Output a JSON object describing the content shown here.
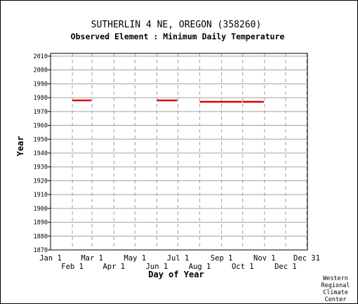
{
  "chart_data": {
    "type": "line",
    "title": "SUTHERLIN 4 NE, OREGON   (358260)",
    "subtitle": "Observed Element : Minimum Daily Temperature",
    "xlabel": "Day of Year",
    "ylabel": "Year",
    "xlim": [
      1,
      366
    ],
    "ylim": [
      1870,
      2012
    ],
    "grid": true,
    "x_ticks_top": [
      {
        "label": "Jan 1",
        "day": 1
      },
      {
        "label": "Mar 1",
        "day": 60
      },
      {
        "label": "May 1",
        "day": 121
      },
      {
        "label": "Jul 1",
        "day": 182
      },
      {
        "label": "Sep 1",
        "day": 244
      },
      {
        "label": "Nov 1",
        "day": 305
      },
      {
        "label": "Dec 31",
        "day": 365
      }
    ],
    "x_ticks_bottom": [
      {
        "label": "Feb 1",
        "day": 32
      },
      {
        "label": "Apr 1",
        "day": 91
      },
      {
        "label": "Jun 1",
        "day": 152
      },
      {
        "label": "Aug 1",
        "day": 213
      },
      {
        "label": "Oct 1",
        "day": 274
      },
      {
        "label": "Dec 1",
        "day": 335
      }
    ],
    "y_ticks": [
      1870,
      1880,
      1890,
      1900,
      1910,
      1920,
      1930,
      1940,
      1950,
      1960,
      1970,
      1980,
      1990,
      2000,
      2010
    ],
    "series_color": "#dd0000",
    "segments": [
      {
        "year": 1978,
        "start_day": 32,
        "end_day": 59
      },
      {
        "year": 1978,
        "start_day": 152,
        "end_day": 181
      },
      {
        "year": 1977,
        "start_day": 213,
        "end_day": 273
      },
      {
        "year": 1977,
        "start_day": 274,
        "end_day": 304
      }
    ]
  },
  "credit": [
    "Western",
    "Regional",
    "Climate",
    "Center"
  ]
}
